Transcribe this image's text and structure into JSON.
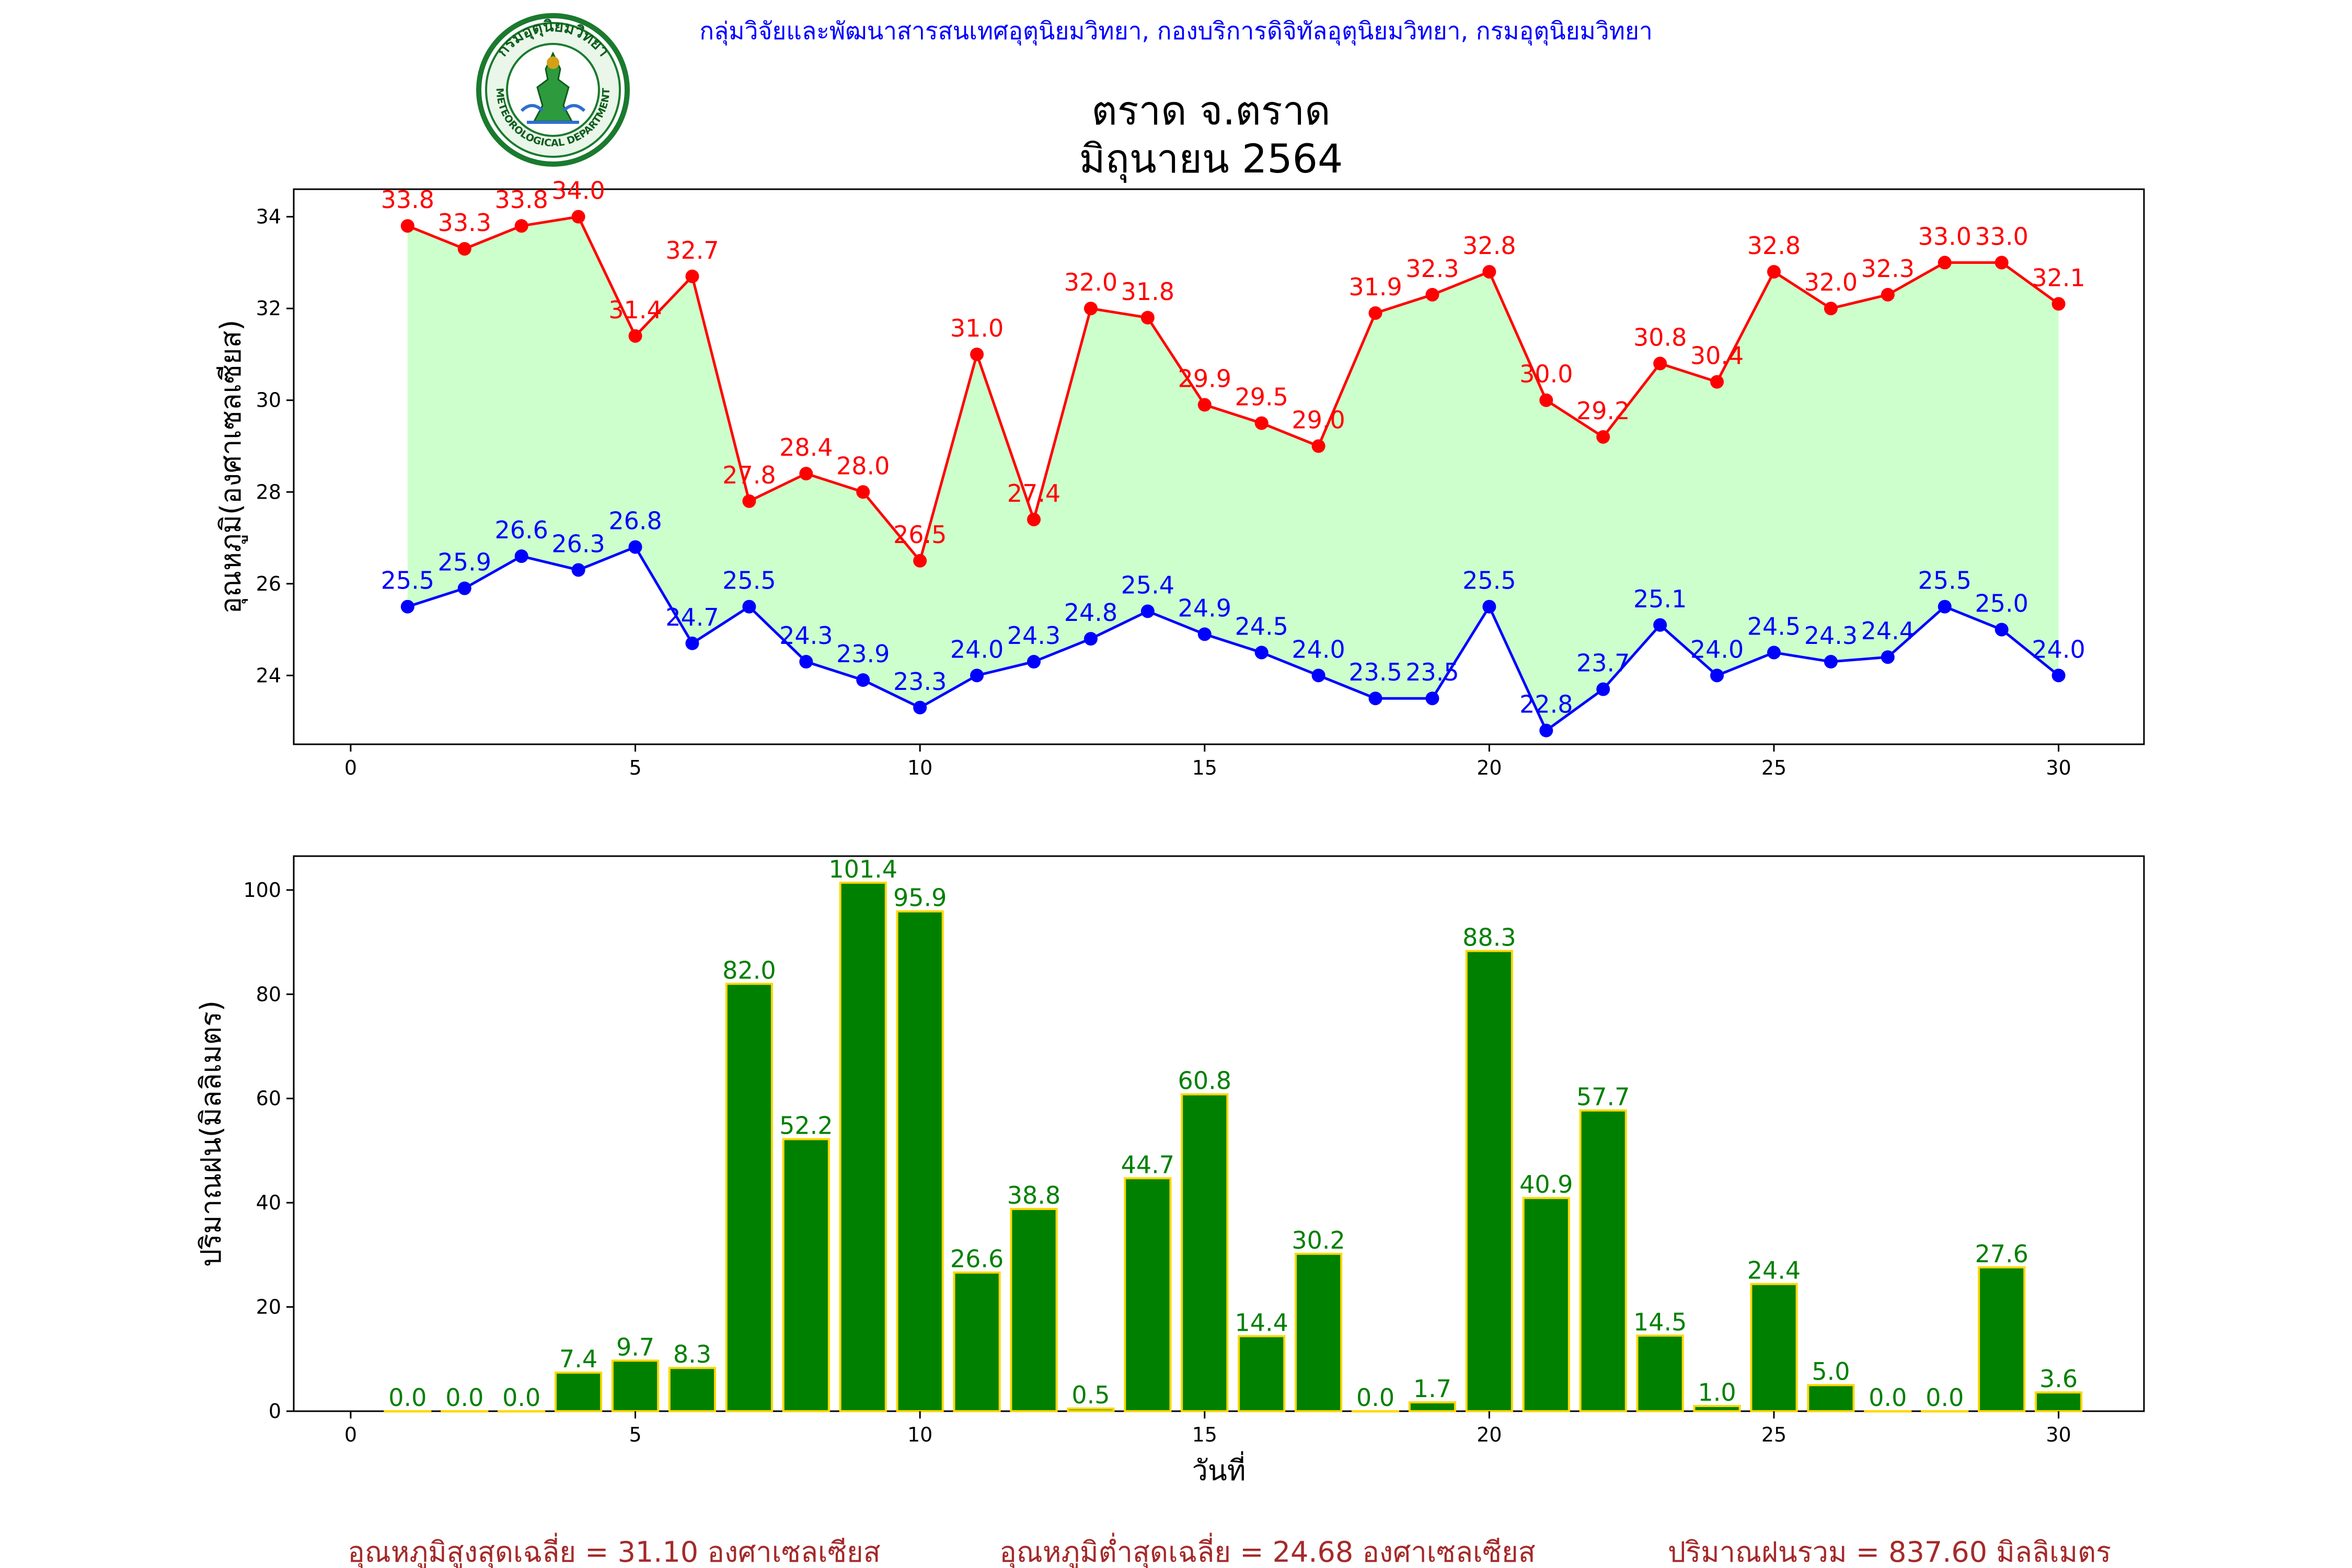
{
  "header": {
    "agency": "กลุ่มวิจัยและพัฒนาสารสนเทศอุตุนิยมวิทยา, กองบริการดิจิทัลอุตุนิยมวิทยา, กรมอุตุนิยมวิทยา",
    "station": "ตราด จ.ตราด",
    "period": "มิถุนายน 2564",
    "logo_text": "กรมอุตุนิยมวิทยา",
    "logo_text_en": "METEOROLOGICAL DEPARTMENT"
  },
  "colors": {
    "max_temp": "#ff0000",
    "min_temp": "#0000ff",
    "fill": "#ccffcc",
    "rain_bar": "#008000",
    "rain_edge": "#ffd700",
    "rain_label": "#008000",
    "header_text": "#0000ff",
    "footer_text": "#a52a2a"
  },
  "chart_data": [
    {
      "type": "line",
      "ylabel": "อุณหภูมิ(องศาเซลเซียส)",
      "xlim": [
        -1,
        31.5
      ],
      "ylim": [
        22.5,
        34.6
      ],
      "x_ticks": [
        0,
        5,
        10,
        15,
        20,
        25,
        30
      ],
      "y_ticks": [
        24,
        26,
        28,
        30,
        32,
        34
      ],
      "x": [
        1,
        2,
        3,
        4,
        5,
        6,
        7,
        8,
        9,
        10,
        11,
        12,
        13,
        14,
        15,
        16,
        17,
        18,
        19,
        20,
        21,
        22,
        23,
        24,
        25,
        26,
        27,
        28,
        29,
        30
      ],
      "series": [
        {
          "key": "max",
          "values": [
            33.8,
            33.3,
            33.8,
            34.0,
            31.4,
            32.7,
            27.8,
            28.4,
            28.0,
            26.5,
            31.0,
            27.4,
            32.0,
            31.8,
            29.9,
            29.5,
            29.0,
            31.9,
            32.3,
            32.8,
            30.0,
            29.2,
            30.8,
            30.4,
            32.8,
            32.0,
            32.3,
            33.0,
            33.0,
            32.1
          ]
        },
        {
          "key": "min",
          "values": [
            25.5,
            25.9,
            26.6,
            26.3,
            26.8,
            24.7,
            25.5,
            24.3,
            23.9,
            23.3,
            24.0,
            24.3,
            24.8,
            25.4,
            24.9,
            24.5,
            24.0,
            23.5,
            23.5,
            25.5,
            22.8,
            23.7,
            25.1,
            24.0,
            24.5,
            24.3,
            24.4,
            25.5,
            25.0,
            24.0
          ]
        }
      ],
      "grid": false
    },
    {
      "type": "bar",
      "xlabel": "วันที่",
      "ylabel": "ปริมาณฝน(มิลลิเมตร)",
      "xlim": [
        -1,
        31.5
      ],
      "ylim": [
        0,
        106.5
      ],
      "x_ticks": [
        0,
        5,
        10,
        15,
        20,
        25,
        30
      ],
      "y_ticks": [
        0,
        20,
        40,
        60,
        80,
        100
      ],
      "categories": [
        1,
        2,
        3,
        4,
        5,
        6,
        7,
        8,
        9,
        10,
        11,
        12,
        13,
        14,
        15,
        16,
        17,
        18,
        19,
        20,
        21,
        22,
        23,
        24,
        25,
        26,
        27,
        28,
        29,
        30
      ],
      "values": [
        0.0,
        0.0,
        0.0,
        7.4,
        9.7,
        8.3,
        82.0,
        52.2,
        101.4,
        95.9,
        26.6,
        38.8,
        0.5,
        44.7,
        60.8,
        14.4,
        30.2,
        0.0,
        1.7,
        88.3,
        40.9,
        57.7,
        14.5,
        1.0,
        24.4,
        5.0,
        0.0,
        0.0,
        27.6,
        3.6
      ],
      "grid": false
    }
  ],
  "footer": {
    "avg_max": "อุณหภูมิสูงสุดเฉลี่ย = 31.10 องศาเซลเซียส",
    "avg_min": "อุณหภูมิต่ำสุดเฉลี่ย = 24.68 องศาเซลเซียส",
    "rain_total": "ปริมาณฝนรวม = 837.60 มิลลิเมตร"
  }
}
